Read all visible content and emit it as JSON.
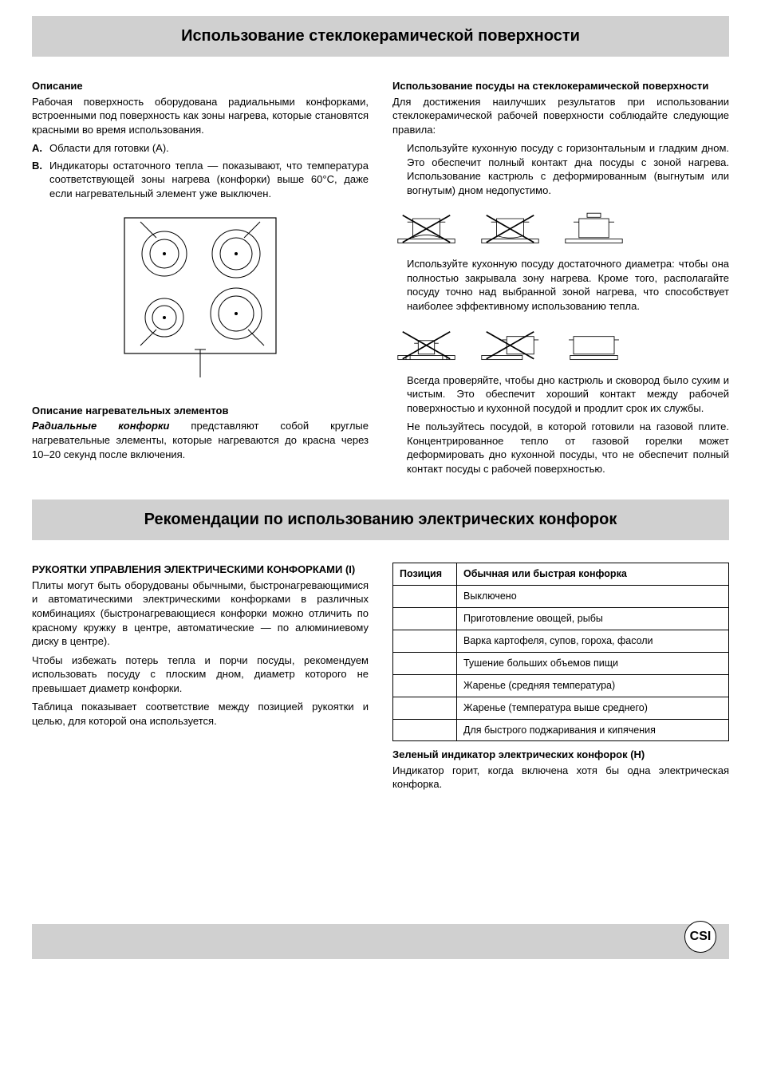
{
  "banner1": "Использование стеклокерамической поверхности",
  "left": {
    "h_desc": "Описание",
    "p1": "Рабочая поверхность оборудована радиальными конфорками, встроенными под поверхность как зоны нагрева, которые становятся красными во время использования.",
    "a_label": "A.",
    "a_text": "Области для готовки (A).",
    "b_label": "B.",
    "b_text": "Индикаторы остаточного тепла — показывают, что температура соответствующей зоны нагрева (конфорки) выше 60°C, даже если нагревательный элемент уже выключен.",
    "h_heat": "Описание нагревательных элементов",
    "heat_bold": "Радиальные конфорки",
    "heat_rest": " представляют собой круглые нагревательные элементы, которые нагреваются до красна через 10–20 секунд после включения."
  },
  "right": {
    "h_use": "Использование посуды на стеклокерамической поверхности",
    "p_intro": "Для достижения наилучших результатов при использовании стеклокерамической рабочей поверхности соблюдайте следующие правила:",
    "p_flat": "Используйте кухонную посуду с горизонтальным и гладким дном. Это обеспечит полный контакт дна посуды с зоной нагрева. Использование кастрюль с деформированным (выгнутым или вогнутым) дном недопустимо.",
    "p_diam": "Используйте кухонную посуду достаточного диаметра: чтобы она полностью закрывала зону нагрева. Кроме того, располагайте посуду точно над выбранной зоной нагрева, что способствует наиболее эффективному использованию тепла.",
    "p_dry": "Всегда проверяйте, чтобы дно кастрюль и сковород было сухим и чистым. Это обеспечит хороший контакт между рабочей поверхностью и кухонной посудой и продлит срок их службы.",
    "p_gas": "Не пользуйтесь посудой, в которой готовили на газовой плите. Концентрированное тепло от газовой горелки может деформировать дно кухонной посуды, что не обеспечит полный контакт посуды с рабочей поверхностью."
  },
  "banner2": "Рекомендации по использованию электрических конфорок",
  "sec2_left": {
    "h": "РУКОЯТКИ УПРАВЛЕНИЯ ЭЛЕКТРИЧЕСКИМИ КОНФОРКАМИ (I)",
    "p1": "Плиты могут быть оборудованы обычными, быстронагревающимися и автоматическими электрическими конфорками в различных комбинациях (быстронагревающиеся конфорки можно отличить по красному кружку в центре, автоматические — по алюминиевому диску в центре).",
    "p2": "Чтобы избежать потерь тепла и порчи посуды, рекомендуем использовать посуду с плоским дном, диаметр которого не превышает диаметр конфорки.",
    "p3": "Таблица показывает соответствие между позицией рукоятки и целью, для которой она используется."
  },
  "table": {
    "h_pos": "Позиция",
    "h_desc": "Обычная или быстрая конфорка",
    "rows": [
      [
        "",
        "Выключено"
      ],
      [
        "",
        "Приготовление овощей, рыбы"
      ],
      [
        "",
        "Варка картофеля, супов, гороха, фасоли"
      ],
      [
        "",
        "Тушение больших объемов пищи"
      ],
      [
        "",
        "Жаренье (средняя температура)"
      ],
      [
        "",
        "Жаренье (температура выше среднего)"
      ],
      [
        "",
        "Для быстрого поджаривания и кипячения"
      ]
    ]
  },
  "green": {
    "h": "Зеленый индикатор электрических конфорок (H)",
    "p": "Индикатор горит, когда включена хотя бы одна электрическая конфорка."
  },
  "footer_logo": "CSI",
  "colors": {
    "banner_bg": "#d0d0d0",
    "line": "#000000"
  }
}
